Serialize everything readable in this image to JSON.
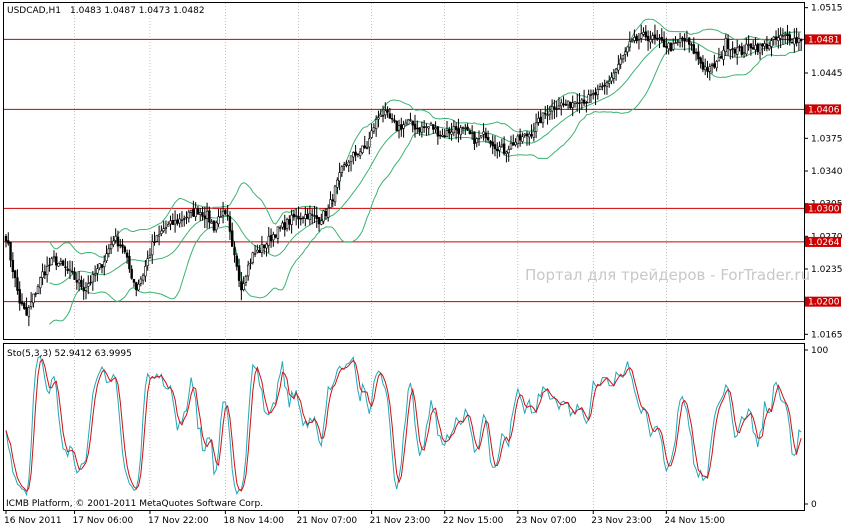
{
  "chart_data": [
    {
      "type": "candlestick",
      "symbol_label": "USDCAD,H1",
      "ohlc_readout": "1.0483 1.0487 1.0473 1.0482",
      "price_scale": [
        "1.0515",
        "1.0445",
        "1.0375",
        "1.0340",
        "1.0305",
        "1.0270",
        "1.0235",
        "1.0165"
      ],
      "level_lines": [
        {
          "value": 1.0481,
          "label": "1.0481"
        },
        {
          "value": 1.0406,
          "label": "1.0406"
        },
        {
          "value": 1.03,
          "label": "1.0300"
        },
        {
          "value": 1.0264,
          "label": "1.0264"
        },
        {
          "value": 1.02,
          "label": "1.0200"
        }
      ],
      "ylim": [
        1.016,
        1.052
      ],
      "price_anchors": [
        [
          0,
          1.027
        ],
        [
          3,
          1.0235
        ],
        [
          6,
          1.02
        ],
        [
          9,
          1.0185
        ],
        [
          12,
          1.0205
        ],
        [
          16,
          1.023
        ],
        [
          21,
          1.0245
        ],
        [
          26,
          1.0235
        ],
        [
          30,
          1.0225
        ],
        [
          34,
          1.0215
        ],
        [
          38,
          1.0225
        ],
        [
          43,
          1.0245
        ],
        [
          47,
          1.0268
        ],
        [
          51,
          1.026
        ],
        [
          54,
          1.0235
        ],
        [
          57,
          1.0215
        ],
        [
          60,
          1.023
        ],
        [
          64,
          1.026
        ],
        [
          69,
          1.0278
        ],
        [
          74,
          1.0285
        ],
        [
          80,
          1.0293
        ],
        [
          84,
          1.0298
        ],
        [
          88,
          1.0292
        ],
        [
          91,
          1.028
        ],
        [
          94,
          1.0295
        ],
        [
          97,
          1.0288
        ],
        [
          99,
          1.0255
        ],
        [
          101,
          1.024
        ],
        [
          103,
          1.0215
        ],
        [
          105,
          1.0232
        ],
        [
          108,
          1.025
        ],
        [
          111,
          1.0255
        ],
        [
          114,
          1.0263
        ],
        [
          117,
          1.0272
        ],
        [
          121,
          1.028
        ],
        [
          126,
          1.029
        ],
        [
          132,
          1.0293
        ],
        [
          137,
          1.0288
        ],
        [
          141,
          1.0298
        ],
        [
          144,
          1.032
        ],
        [
          147,
          1.034
        ],
        [
          150,
          1.0352
        ],
        [
          154,
          1.036
        ],
        [
          158,
          1.0366
        ],
        [
          161,
          1.0388
        ],
        [
          164,
          1.0403
        ],
        [
          167,
          1.0398
        ],
        [
          171,
          1.0386
        ],
        [
          176,
          1.0392
        ],
        [
          181,
          1.0385
        ],
        [
          186,
          1.0388
        ],
        [
          191,
          1.0378
        ],
        [
          196,
          1.0386
        ],
        [
          201,
          1.0382
        ],
        [
          206,
          1.0372
        ],
        [
          210,
          1.038
        ],
        [
          214,
          1.0368
        ],
        [
          218,
          1.0362
        ],
        [
          222,
          1.037
        ],
        [
          226,
          1.0375
        ],
        [
          230,
          1.0382
        ],
        [
          234,
          1.0395
        ],
        [
          238,
          1.0407
        ],
        [
          242,
          1.0412
        ],
        [
          246,
          1.041
        ],
        [
          250,
          1.0418
        ],
        [
          254,
          1.0416
        ],
        [
          258,
          1.0422
        ],
        [
          262,
          1.043
        ],
        [
          266,
          1.0445
        ],
        [
          270,
          1.0462
        ],
        [
          273,
          1.0475
        ],
        [
          276,
          1.048
        ],
        [
          280,
          1.0485
        ],
        [
          284,
          1.048
        ],
        [
          288,
          1.0476
        ],
        [
          292,
          1.0472
        ],
        [
          296,
          1.0482
        ],
        [
          299,
          1.0475
        ],
        [
          302,
          1.0465
        ],
        [
          305,
          1.0452
        ],
        [
          308,
          1.0448
        ],
        [
          312,
          1.0458
        ],
        [
          315,
          1.0478
        ],
        [
          318,
          1.0472
        ],
        [
          322,
          1.0468
        ],
        [
          326,
          1.0475
        ],
        [
          330,
          1.0472
        ],
        [
          334,
          1.0476
        ],
        [
          338,
          1.0482
        ],
        [
          342,
          1.0484
        ],
        [
          346,
          1.048
        ],
        [
          348,
          1.0482
        ]
      ],
      "time_labels": [
        {
          "bar": 0,
          "label": "16 Nov 2011"
        },
        {
          "bar": 30,
          "label": "17 Nov 06:00"
        },
        {
          "bar": 63,
          "label": "17 Nov 22:00"
        },
        {
          "bar": 96,
          "label": "18 Nov 14:00"
        },
        {
          "bar": 128,
          "label": "21 Nov 07:00"
        },
        {
          "bar": 160,
          "label": "21 Nov 23:00"
        },
        {
          "bar": 192,
          "label": "22 Nov 15:00"
        },
        {
          "bar": 224,
          "label": "23 Nov 07:00"
        },
        {
          "bar": 257,
          "label": "23 Nov 23:00"
        },
        {
          "bar": 289,
          "label": "24 Nov 15:00"
        }
      ],
      "bollinger_period": 20,
      "watermark": "Портал для трейдеров - ForTrader.ru",
      "copyright": "ICMB Platform, © 2001-2011 MetaQuotes Software Corp.",
      "colors": {
        "candle": "#000000",
        "bands": "#3cb371",
        "levels": "#cc0000",
        "level_box": "#cc0000",
        "grid": "#888888"
      }
    },
    {
      "type": "line",
      "indicator_label": "Sto(5,3,3) 52.9412 63.9995",
      "ylim": [
        0,
        100
      ],
      "scale_labels": [
        "100",
        "0"
      ],
      "series": [
        {
          "role": "main",
          "color": "#22a6b8"
        },
        {
          "role": "signal",
          "color": "#d01010"
        }
      ]
    }
  ]
}
